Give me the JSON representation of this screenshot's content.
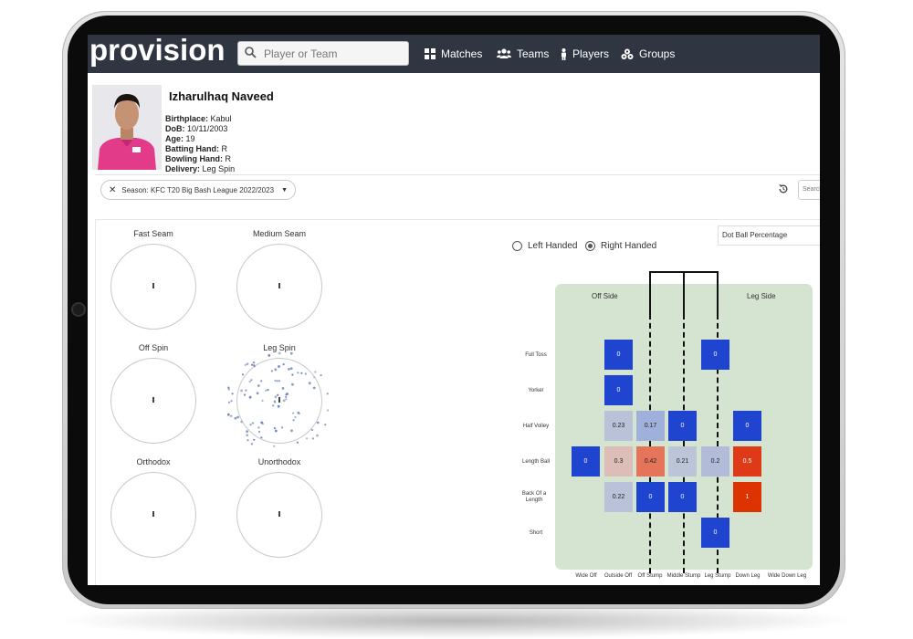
{
  "nav": {
    "logo": "provision",
    "search_placeholder": "Player or Team",
    "items": [
      {
        "label": "Matches",
        "icon": "grid-icon"
      },
      {
        "label": "Teams",
        "icon": "people-icon"
      },
      {
        "label": "Players",
        "icon": "person-icon"
      },
      {
        "label": "Groups",
        "icon": "groups-icon"
      }
    ]
  },
  "player": {
    "name": "Izharulhaq Naveed",
    "fields": [
      {
        "label": "Birthplace:",
        "value": "Kabul"
      },
      {
        "label": "DoB:",
        "value": "10/11/2003"
      },
      {
        "label": "Age:",
        "value": "19"
      },
      {
        "label": "Batting Hand:",
        "value": "R"
      },
      {
        "label": "Bowling Hand:",
        "value": "R"
      },
      {
        "label": "Delivery:",
        "value": "Leg Spin"
      }
    ]
  },
  "filters": {
    "season_chip": "Season: KFC T20 Big Bash League 2022/2023",
    "search_placeholder": "Search"
  },
  "pitch_maps": [
    {
      "title": "Fast Seam"
    },
    {
      "title": "Medium Seam"
    },
    {
      "title": "Off Spin"
    },
    {
      "title": "Leg Spin"
    },
    {
      "title": "Orthodox"
    },
    {
      "title": "Unorthodox"
    }
  ],
  "handedness": {
    "left_label": "Left Handed",
    "right_label": "Right Handed",
    "selected": "Right Handed"
  },
  "metric": {
    "selected": "Dot Ball Percentage"
  },
  "heatmap": {
    "off_side_label": "Off Side",
    "leg_side_label": "Leg Side",
    "lengths": [
      "Full Toss",
      "Yorker",
      "Half Volley",
      "Length Ball",
      "Back Of a Length",
      "Short"
    ],
    "lines": [
      "Wide Off",
      "Outside Off",
      "Off Stump",
      "Middle Stump",
      "Leg Stump",
      "Down Leg",
      "Wide Down Leg"
    ],
    "cells": [
      {
        "row": 0,
        "col": 1,
        "value": "0",
        "color": "#1f44d0"
      },
      {
        "row": 0,
        "col": 4,
        "value": "0",
        "color": "#1f44d0"
      },
      {
        "row": 1,
        "col": 1,
        "value": "0",
        "color": "#1f44d0"
      },
      {
        "row": 2,
        "col": 1,
        "value": "0.23",
        "color": "#b9c2d8"
      },
      {
        "row": 2,
        "col": 2,
        "value": "0.17",
        "color": "#9fb0da"
      },
      {
        "row": 2,
        "col": 3,
        "value": "0",
        "color": "#1f44d0"
      },
      {
        "row": 2,
        "col": 5,
        "value": "0",
        "color": "#1f44d0"
      },
      {
        "row": 3,
        "col": 0,
        "value": "0",
        "color": "#1f44d0"
      },
      {
        "row": 3,
        "col": 1,
        "value": "0.3",
        "color": "#ddbdb7"
      },
      {
        "row": 3,
        "col": 2,
        "value": "0.42",
        "color": "#e4745a"
      },
      {
        "row": 3,
        "col": 3,
        "value": "0.21",
        "color": "#bcc4d8"
      },
      {
        "row": 3,
        "col": 4,
        "value": "0.2",
        "color": "#b2bcd8"
      },
      {
        "row": 3,
        "col": 5,
        "value": "0.5",
        "color": "#de3a18"
      },
      {
        "row": 4,
        "col": 1,
        "value": "0.22",
        "color": "#b9c2d8"
      },
      {
        "row": 4,
        "col": 2,
        "value": "0",
        "color": "#1f44d0"
      },
      {
        "row": 4,
        "col": 3,
        "value": "0",
        "color": "#1f44d0"
      },
      {
        "row": 4,
        "col": 5,
        "value": "1",
        "color": "#dd3300"
      },
      {
        "row": 5,
        "col": 4,
        "value": "0",
        "color": "#1f44d0"
      }
    ]
  }
}
